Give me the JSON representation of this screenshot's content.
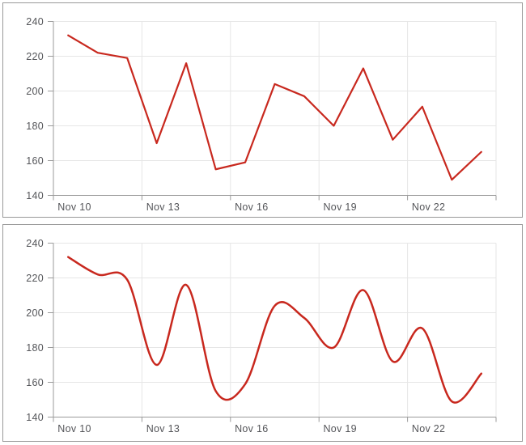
{
  "page": {
    "background": "#ffffff",
    "panel_border_color": "#9a9a9a"
  },
  "chart_data": [
    {
      "type": "line",
      "title": "",
      "categories": [
        "Nov 10",
        "Nov 11",
        "Nov 12",
        "Nov 13",
        "Nov 14",
        "Nov 15",
        "Nov 16",
        "Nov 17",
        "Nov 18",
        "Nov 19",
        "Nov 20",
        "Nov 21",
        "Nov 22",
        "Nov 23",
        "Nov 24"
      ],
      "values": [
        232,
        222,
        219,
        170,
        216,
        155,
        159,
        204,
        197,
        180,
        213,
        172,
        191,
        149,
        165
      ],
      "x_tick_labels": [
        "Nov 10",
        "Nov 13",
        "Nov 16",
        "Nov 19",
        "Nov 22"
      ],
      "y_ticks": [
        140,
        160,
        180,
        200,
        220,
        240
      ],
      "ylim": [
        140,
        240
      ],
      "grid": true,
      "legend": "none",
      "line_color": "#c8281e",
      "grid_color": "#e6e6e6",
      "axis_color": "#9b9b9b",
      "tick_label_color": "#545559"
    },
    {
      "type": "spline",
      "title": "",
      "categories": [
        "Nov 10",
        "Nov 11",
        "Nov 12",
        "Nov 13",
        "Nov 14",
        "Nov 15",
        "Nov 16",
        "Nov 17",
        "Nov 18",
        "Nov 19",
        "Nov 20",
        "Nov 21",
        "Nov 22",
        "Nov 23",
        "Nov 24"
      ],
      "values": [
        232,
        222,
        219,
        170,
        216,
        155,
        159,
        204,
        197,
        180,
        213,
        172,
        191,
        149,
        165
      ],
      "x_tick_labels": [
        "Nov 10",
        "Nov 13",
        "Nov 16",
        "Nov 19",
        "Nov 22"
      ],
      "y_ticks": [
        140,
        160,
        180,
        200,
        220,
        240
      ],
      "ylim": [
        140,
        240
      ],
      "grid": true,
      "legend": "none",
      "line_color": "#c8281e",
      "grid_color": "#e6e6e6",
      "axis_color": "#9b9b9b",
      "tick_label_color": "#545559"
    }
  ]
}
